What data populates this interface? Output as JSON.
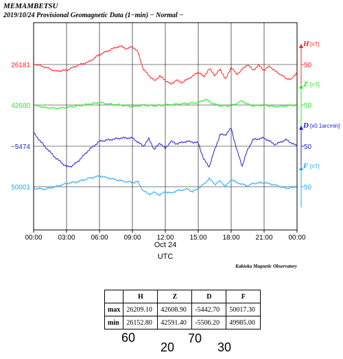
{
  "header": {
    "station": "MEMAMBETSU",
    "subtitle": "2019/10/24  Provisional Geomagnetic Data (1−min)  − Normal −"
  },
  "chart_data": {
    "type": "line",
    "x_ticks": [
      "00:00",
      "03:00",
      "06:00",
      "09:00",
      "12:00",
      "15:00",
      "18:00",
      "21:00",
      "00:00"
    ],
    "x_sub_label": "Oct 24",
    "xlabel": "UTC",
    "credit": "Kakioka Magnetic Observatory",
    "grid": true,
    "series": [
      {
        "name": "H",
        "unit": "[nT]",
        "baseline": "26181",
        "interval": "50",
        "color": "#ff2020",
        "x": [
          0,
          1,
          2,
          3,
          4,
          5,
          6,
          7,
          7.5,
          8,
          8.5,
          9,
          9.5,
          10,
          10.5,
          11,
          11.5,
          12,
          12.5,
          13,
          13.5,
          14,
          14.5,
          15,
          15.5,
          16,
          16.5,
          17,
          17.5,
          18,
          18.5,
          19,
          19.5,
          20,
          20.5,
          21,
          21.5,
          22,
          22.5,
          23,
          23.5,
          24
        ],
        "y": [
          26182,
          26178,
          26173,
          26174,
          26180,
          26184,
          26193,
          26199,
          26202,
          26203,
          26200,
          26203,
          26196,
          26175,
          26168,
          26161,
          26167,
          26162,
          26157,
          26162,
          26159,
          26163,
          26167,
          26172,
          26166,
          26176,
          26168,
          26175,
          26163,
          26178,
          26169,
          26175,
          26181,
          26174,
          26180,
          26174,
          26179,
          26173,
          26169,
          26164,
          26163,
          26172
        ]
      },
      {
        "name": "Z",
        "unit": "[nT]",
        "baseline": "42600",
        "interval": "50",
        "color": "#20ee20",
        "x": [
          0,
          1,
          2,
          3,
          4,
          5,
          6,
          7,
          8,
          9,
          10,
          11,
          12,
          13,
          14,
          15,
          15.7,
          16,
          16.5,
          17,
          18,
          18.5,
          19,
          19.5,
          20,
          21,
          22,
          23,
          24
        ],
        "y": [
          42600,
          42597,
          42596,
          42597,
          42599,
          42601,
          42603,
          42601,
          42600,
          42598,
          42600,
          42599,
          42600,
          42601,
          42602,
          42603,
          42607,
          42604,
          42601,
          42599,
          42599,
          42602,
          42605,
          42601,
          42599,
          42600,
          42598,
          42599,
          42600
        ]
      },
      {
        "name": "D",
        "unit": "[x0.1arcmin]",
        "baseline": "−5474",
        "interval": "50",
        "color": "#2020d0",
        "x": [
          0,
          1,
          2,
          3,
          3.5,
          4,
          5,
          6,
          7,
          8,
          9,
          10,
          10.5,
          11,
          11.5,
          12,
          12.5,
          13,
          14,
          15,
          15.5,
          16,
          16.5,
          17,
          17.5,
          18,
          18.5,
          19,
          19.5,
          20,
          21,
          22,
          23,
          24
        ],
        "y": [
          -5458,
          -5474,
          -5488,
          -5499,
          -5498,
          -5493,
          -5479,
          -5468,
          -5466,
          -5464,
          -5464,
          -5474,
          -5465,
          -5478,
          -5470,
          -5477,
          -5468,
          -5471,
          -5468,
          -5470,
          -5490,
          -5499,
          -5478,
          -5460,
          -5460,
          -5452,
          -5478,
          -5498,
          -5478,
          -5466,
          -5464,
          -5472,
          -5466,
          -5474
        ]
      },
      {
        "name": "F",
        "unit": "[nT]",
        "baseline": "50001",
        "interval": "50",
        "color": "#20a8f0",
        "x": [
          0,
          1,
          2,
          3,
          4,
          5,
          6,
          7,
          8,
          9,
          9.5,
          10,
          10.5,
          11,
          11.5,
          12,
          12.5,
          13,
          14,
          14.5,
          15,
          15.5,
          16,
          16.5,
          17,
          17.5,
          18,
          18.5,
          19,
          19.5,
          20,
          21,
          22,
          23,
          24
        ],
        "y": [
          49999,
          49998,
          50001,
          50005,
          50007,
          50011,
          50014,
          50011,
          50008,
          50006,
          50007,
          49996,
          49992,
          49994,
          49991,
          49995,
          49993,
          49996,
          49998,
          49995,
          49999,
          50004,
          50011,
          50004,
          50008,
          50001,
          50010,
          50006,
          50004,
          50002,
          50005,
          50006,
          50003,
          49999,
          50001
        ]
      }
    ],
    "y_scale": "50 units per 60 px",
    "ylim_note": "each series plotted relative to its baseline"
  },
  "stats_table": {
    "headers": [
      "H",
      "Z",
      "D",
      "F"
    ],
    "rows": [
      {
        "label": "max",
        "values": [
          "26209.10",
          "42608.90",
          "-5442.70",
          "50017.30"
        ]
      },
      {
        "label": "min",
        "values": [
          "26152.80",
          "42591.40",
          "-5506.20",
          "49985.00"
        ]
      }
    ]
  },
  "handwritten": [
    {
      "text": "60",
      "color": "#ff7070"
    },
    {
      "text": "20",
      "color": "#80e060"
    },
    {
      "text": "70",
      "color": "#4070e0"
    },
    {
      "text": "30",
      "color": "#60c8f0"
    }
  ]
}
